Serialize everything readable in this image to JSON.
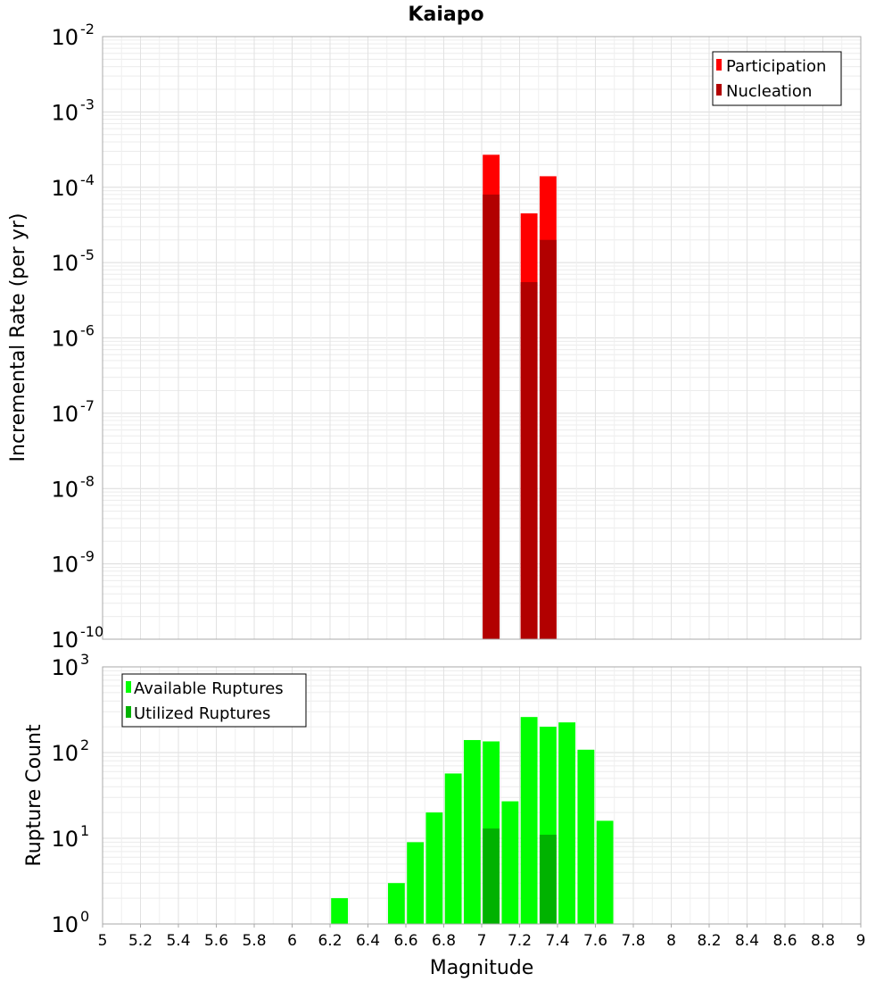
{
  "chart_data": [
    {
      "type": "bar",
      "title": "Kaiapo",
      "xlabel": "",
      "ylabel": "Incremental Rate (per yr)",
      "yscale": "log",
      "xlim": [
        5,
        9
      ],
      "ylim_exp": [
        -10,
        -2
      ],
      "y_tick_base": "10",
      "y_tick_exponents": [
        "-10",
        "-9",
        "-8",
        "-7",
        "-6",
        "-5",
        "-4",
        "-3",
        "-2"
      ],
      "bin_width": 0.1,
      "grid": true,
      "legend_position": "top-right",
      "series": [
        {
          "name": "Participation",
          "color": "#ff0000",
          "x": [
            7.05,
            7.25,
            7.35
          ],
          "values": [
            0.00027,
            4.5e-05,
            0.00014
          ]
        },
        {
          "name": "Nucleation",
          "color": "#b20000",
          "x": [
            7.05,
            7.25,
            7.35
          ],
          "values": [
            8e-05,
            5.5e-06,
            2e-05
          ]
        }
      ]
    },
    {
      "type": "bar",
      "title": "",
      "xlabel": "Magnitude",
      "ylabel": "Rupture Count",
      "yscale": "log",
      "xlim": [
        5,
        9
      ],
      "ylim_exp": [
        0,
        3
      ],
      "y_tick_base": "10",
      "y_tick_exponents": [
        "0",
        "1",
        "2",
        "3"
      ],
      "x_ticks": [
        "5",
        "5.2",
        "5.4",
        "5.6",
        "5.8",
        "6",
        "6.2",
        "6.4",
        "6.6",
        "6.8",
        "7",
        "7.2",
        "7.4",
        "7.6",
        "7.8",
        "8",
        "8.2",
        "8.4",
        "8.6",
        "8.8",
        "9"
      ],
      "bin_width": 0.1,
      "grid": true,
      "legend_position": "top-left",
      "series": [
        {
          "name": "Available Ruptures",
          "color": "#00ff00",
          "x": [
            6.25,
            6.45,
            6.55,
            6.65,
            6.75,
            6.85,
            6.95,
            7.05,
            7.15,
            7.25,
            7.35,
            7.45,
            7.55,
            7.65
          ],
          "values": [
            2,
            1,
            3,
            9,
            20,
            57,
            140,
            135,
            27,
            260,
            200,
            225,
            108,
            16
          ]
        },
        {
          "name": "Utilized Ruptures",
          "color": "#00b200",
          "x": [
            7.05,
            7.25,
            7.35
          ],
          "values": [
            13,
            1,
            11
          ]
        }
      ]
    }
  ]
}
